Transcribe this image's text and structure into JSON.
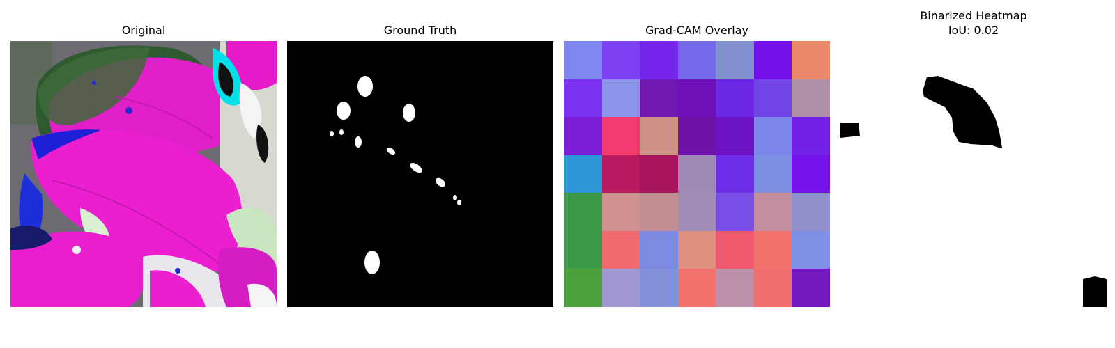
{
  "panels": {
    "original": {
      "title": "Original"
    },
    "ground_truth": {
      "title": "Ground Truth"
    },
    "gradcam": {
      "title": "Grad-CAM Overlay",
      "cells": [
        [
          "#7f88f0",
          "#7c3ff2",
          "#7525e9",
          "#746aea",
          "#8290d0",
          "#7410e9",
          "#ea8a6a"
        ],
        [
          "#7b32f2",
          "#8a95ea",
          "#7019b0",
          "#7010b8",
          "#6d28e6",
          "#7246e6",
          "#af8fa8"
        ],
        [
          "#7b1ed6",
          "#f23a6e",
          "#cf9088",
          "#6d13a6",
          "#6c13c6",
          "#7b86ea",
          "#7222e6"
        ],
        [
          "#2b97d6",
          "#bb1a60",
          "#a8155e",
          "#9f8ab8",
          "#6c2ee6",
          "#7e90e2",
          "#7512ea"
        ],
        [
          "#3a9a4a",
          "#cf9290",
          "#c38e92",
          "#a08cb8",
          "#784ee6",
          "#c08e9e",
          "#9090cc"
        ],
        [
          "#3a9a48",
          "#f26a6e",
          "#7c8ae2",
          "#e0907e",
          "#f0586e",
          "#f2726e",
          "#8090e6"
        ],
        [
          "#4c9f3a",
          "#9f98d0",
          "#8391da",
          "#f2726e",
          "#bb90a8",
          "#f26e6e",
          "#7418c0"
        ]
      ]
    },
    "binarized": {
      "title_line1": "Binarized Heatmap",
      "title_line2": "IoU: 0.02"
    }
  }
}
